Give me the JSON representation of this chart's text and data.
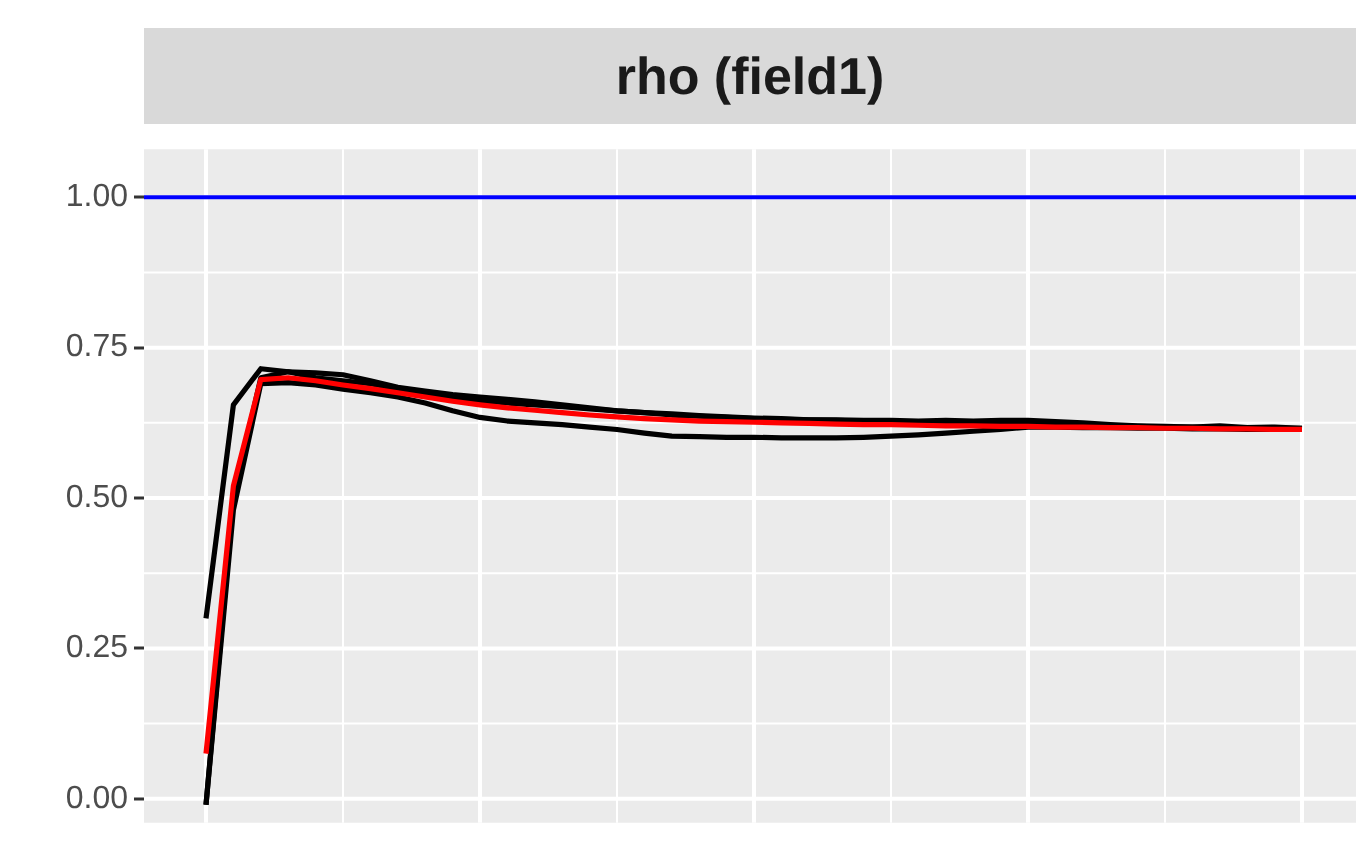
{
  "chart_data": {
    "type": "line",
    "title": "rho (field1)",
    "categories": [
      null,
      null,
      null,
      null,
      null,
      null,
      null,
      null,
      null,
      null,
      null,
      null,
      null,
      null,
      null,
      null,
      null,
      null,
      null,
      null,
      null,
      null,
      null,
      null,
      null,
      null,
      null,
      null,
      null,
      null,
      null,
      null,
      null,
      null,
      null,
      null,
      null,
      null,
      null,
      null,
      null
    ],
    "series": [
      {
        "color": "#000000",
        "values": [
          0.3,
          0.655,
          0.715,
          0.71,
          0.7,
          0.695,
          0.69,
          0.682,
          0.675,
          0.668,
          0.662,
          0.658,
          0.655,
          0.652,
          0.648,
          0.645,
          0.642,
          0.64,
          0.637,
          0.635,
          0.633,
          0.632,
          0.63,
          0.629,
          0.628,
          0.626,
          0.625,
          0.624,
          0.623,
          0.622,
          0.622,
          0.621,
          0.62,
          0.62,
          0.619,
          0.618,
          0.618,
          0.617,
          0.617,
          0.616,
          0.616
        ]
      },
      {
        "color": "#000000",
        "values": [
          -0.01,
          0.5,
          0.7,
          0.71,
          0.708,
          0.705,
          0.695,
          0.684,
          0.678,
          0.672,
          0.668,
          0.664,
          0.66,
          0.655,
          0.65,
          0.645,
          0.642,
          0.638,
          0.636,
          0.634,
          0.632,
          0.631,
          0.63,
          0.63,
          0.629,
          0.629,
          0.628,
          0.629,
          0.628,
          0.629,
          0.629,
          0.627,
          0.625,
          0.622,
          0.62,
          0.619,
          0.618,
          0.62,
          0.617,
          0.618,
          0.616
        ]
      },
      {
        "color": "#000000",
        "values": [
          -0.01,
          0.48,
          0.69,
          0.692,
          0.688,
          0.681,
          0.675,
          0.668,
          0.658,
          0.645,
          0.634,
          0.628,
          0.625,
          0.622,
          0.618,
          0.614,
          0.608,
          0.603,
          0.602,
          0.601,
          0.601,
          0.6,
          0.6,
          0.6,
          0.601,
          0.603,
          0.605,
          0.608,
          0.611,
          0.614,
          0.618,
          0.618,
          0.617,
          0.617,
          0.616,
          0.616,
          0.615,
          0.615,
          0.614,
          0.614,
          0.614
        ]
      },
      {
        "color": "#ff0000",
        "values": [
          0.075,
          0.52,
          0.697,
          0.7,
          0.695,
          0.688,
          0.682,
          0.675,
          0.668,
          0.661,
          0.655,
          0.65,
          0.646,
          0.642,
          0.638,
          0.635,
          0.632,
          0.63,
          0.628,
          0.627,
          0.626,
          0.625,
          0.624,
          0.623,
          0.622,
          0.622,
          0.621,
          0.62,
          0.62,
          0.619,
          0.619,
          0.618,
          0.618,
          0.617,
          0.617,
          0.616,
          0.616,
          0.615,
          0.615,
          0.614,
          0.614
        ]
      }
    ],
    "ylim": [
      -0.04,
      1.08
    ],
    "yticks": [
      {
        "value": 0,
        "label": "0.00"
      },
      {
        "value": 0.25,
        "label": "0.25"
      },
      {
        "value": 0.5,
        "label": "0.50"
      },
      {
        "value": 0.75,
        "label": "0.75"
      },
      {
        "value": 1,
        "label": "1.00"
      }
    ],
    "ref_lines": [
      {
        "axis": "y",
        "value": 1,
        "color": "#0000ff"
      }
    ],
    "grid": true,
    "tick_labels": "y",
    "legend": false,
    "marker": "none",
    "line_style": "solid"
  }
}
